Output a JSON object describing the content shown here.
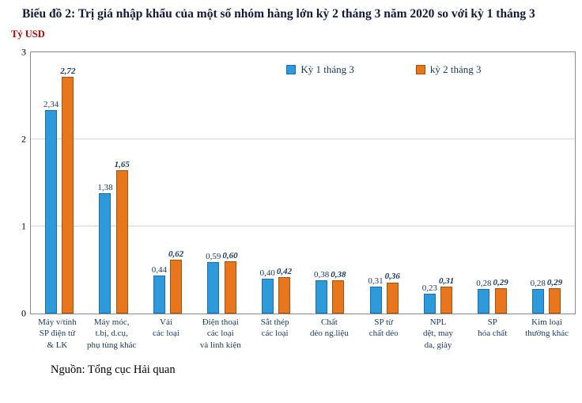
{
  "title": "Biểu đồ 2: Trị giá nhập khẩu của một số nhóm hàng lớn kỳ 2 tháng 3 năm 2020 so với kỳ 1 tháng 3",
  "y_axis_title": "Tỷ USD",
  "source": "Nguồn: Tổng cục Hải quan",
  "legend": {
    "series1": "Kỳ 1 tháng 3",
    "series2": "kỳ 2 tháng 3"
  },
  "colors": {
    "series1_fill": "#2f9ad9",
    "series1_border": "#1c6eae",
    "series2_fill": "#e8761d",
    "series2_border": "#a35311",
    "y_title": "#C00000",
    "text": "#17375E"
  },
  "chart_data": {
    "type": "bar",
    "title": "Biểu đồ 2: Trị giá nhập khẩu của một số nhóm hàng lớn kỳ 2 tháng 3 năm 2020 so với kỳ 1 tháng 3",
    "ylabel": "Tỷ USD",
    "ylim": [
      0,
      3
    ],
    "yticks": [
      0,
      1,
      2,
      3
    ],
    "grid": true,
    "legend_position": "top-inside",
    "categories": [
      "Máy v/tính\nSP điện tử\n& LK",
      "Máy móc,\nt.bị, d.cụ,\nphụ tùng khác",
      "Vải\ncác loại",
      "Điện thoại\ncác loại\nvà linh kiện",
      "Sắt thép\ncác loại",
      "Chất\ndẻo ng.liệu",
      "SP từ\nchất dẻo",
      "NPL\ndệt, may\nda, giày",
      "SP\nhóa chất",
      "Kim loại\nthường khác"
    ],
    "series": [
      {
        "name": "Kỳ 1 tháng 3",
        "values": [
          2.34,
          1.38,
          0.44,
          0.59,
          0.4,
          0.38,
          0.31,
          0.23,
          0.28,
          0.28
        ],
        "labels": [
          "2,34",
          "1,38",
          "0,44",
          "0,59",
          "0,40",
          "0,38",
          "0,31",
          "0,23",
          "0,28",
          "0,28"
        ]
      },
      {
        "name": "kỳ 2 tháng 3",
        "values": [
          2.72,
          1.65,
          0.62,
          0.6,
          0.42,
          0.38,
          0.36,
          0.31,
          0.29,
          0.29
        ],
        "labels": [
          "2,72",
          "1,65",
          "0,62",
          "0,60",
          "0,42",
          "0,38",
          "0,36",
          "0,31",
          "0,29",
          "0,29"
        ]
      }
    ]
  }
}
